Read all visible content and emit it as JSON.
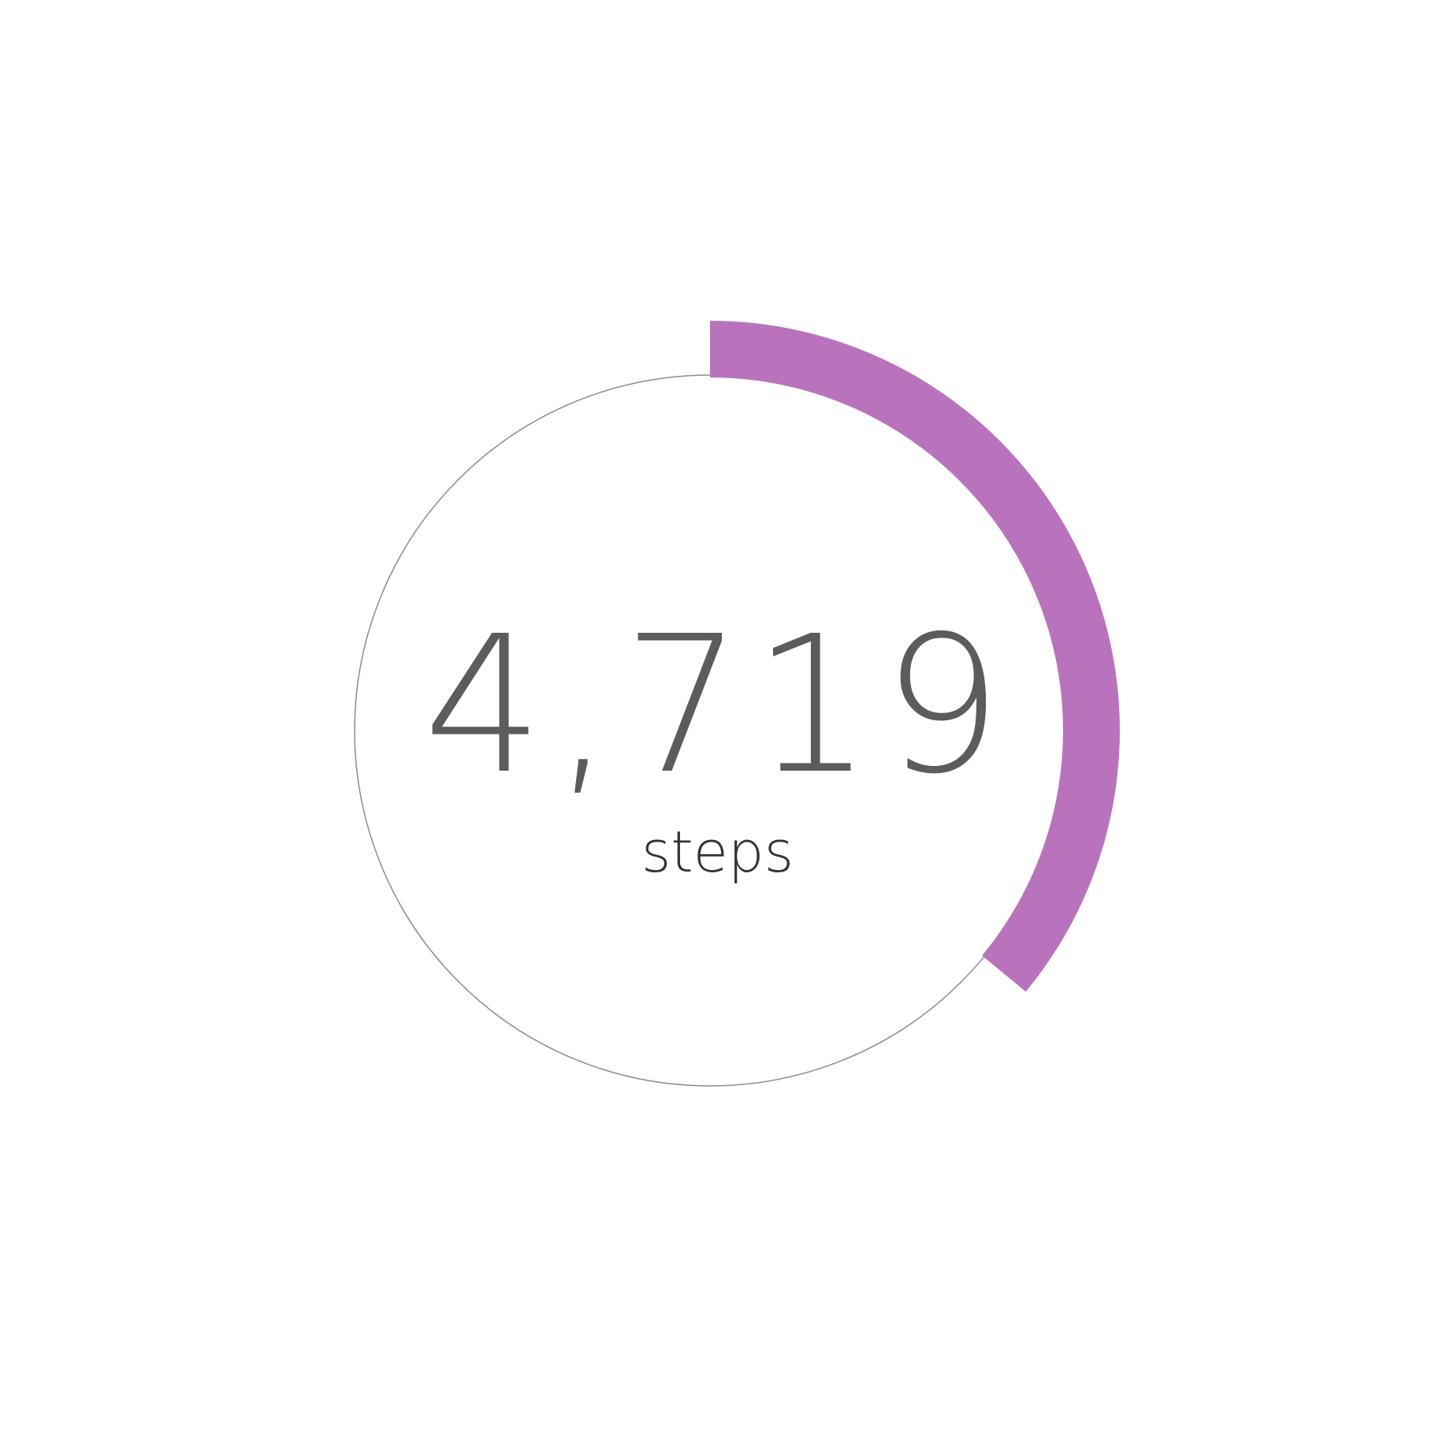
{
  "progress_widget": {
    "value": "4,719",
    "unit": "steps",
    "progress_fraction": 0.36,
    "colors": {
      "progress": "#b973bd",
      "track": "#8c8c8c",
      "value_text": "#5c5c5c",
      "unit_text": "#333333"
    }
  }
}
